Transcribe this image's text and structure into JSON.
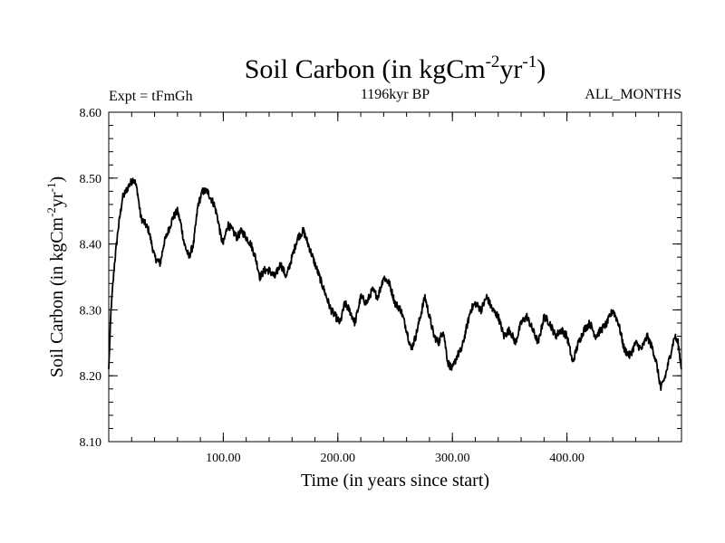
{
  "chart_data": {
    "type": "line",
    "title": {
      "main": "Soil Carbon (in kgCm",
      "sup1": "-2",
      "mid": "yr",
      "sup2": "-1",
      "end": ")"
    },
    "subtitle_left": "Expt = tFmGh",
    "subtitle_center": "1196kyr BP",
    "subtitle_right": "ALL_MONTHS",
    "xlabel": "Time (in years since start)",
    "ylabel": {
      "main": "Soil Carbon (in kgCm",
      "sup1": "-2",
      "mid": "yr",
      "sup2": "-1",
      "end": ")"
    },
    "xlim": [
      0,
      500
    ],
    "ylim": [
      8.1,
      8.6
    ],
    "x_ticks": [
      100,
      200,
      300,
      400
    ],
    "x_tick_labels": [
      "100.00",
      "200.00",
      "300.00",
      "400.00"
    ],
    "y_ticks": [
      8.1,
      8.2,
      8.3,
      8.4,
      8.5,
      8.6
    ],
    "y_tick_labels": [
      "8.10",
      "8.20",
      "8.30",
      "8.40",
      "8.50",
      "8.60"
    ],
    "grid": false,
    "line_color": "#000000",
    "series": [
      {
        "name": "Soil Carbon",
        "x": [
          0,
          2,
          5,
          8,
          12,
          15,
          18,
          22,
          25,
          28,
          32,
          35,
          40,
          45,
          48,
          52,
          56,
          60,
          63,
          66,
          70,
          74,
          78,
          82,
          86,
          89,
          92,
          95,
          98,
          100,
          104,
          108,
          112,
          116,
          120,
          124,
          128,
          132,
          136,
          140,
          145,
          150,
          155,
          160,
          165,
          170,
          174,
          178,
          182,
          186,
          190,
          194,
          198,
          202,
          206,
          210,
          215,
          220,
          225,
          230,
          235,
          240,
          245,
          250,
          255,
          260,
          264,
          268,
          272,
          276,
          280,
          284,
          288,
          292,
          296,
          300,
          304,
          308,
          312,
          316,
          320,
          325,
          330,
          335,
          340,
          345,
          350,
          355,
          360,
          365,
          370,
          375,
          380,
          385,
          390,
          395,
          400,
          405,
          410,
          415,
          420,
          425,
          430,
          435,
          440,
          445,
          450,
          455,
          460,
          465,
          470,
          475,
          478,
          482,
          486,
          490,
          494,
          497,
          500
        ],
        "y": [
          8.21,
          8.3,
          8.37,
          8.42,
          8.47,
          8.48,
          8.49,
          8.5,
          8.48,
          8.44,
          8.43,
          8.42,
          8.38,
          8.37,
          8.4,
          8.42,
          8.44,
          8.45,
          8.43,
          8.4,
          8.38,
          8.4,
          8.46,
          8.48,
          8.48,
          8.47,
          8.46,
          8.44,
          8.41,
          8.4,
          8.43,
          8.42,
          8.41,
          8.42,
          8.41,
          8.4,
          8.38,
          8.35,
          8.36,
          8.36,
          8.35,
          8.37,
          8.35,
          8.38,
          8.41,
          8.42,
          8.4,
          8.38,
          8.36,
          8.34,
          8.32,
          8.3,
          8.29,
          8.28,
          8.31,
          8.3,
          8.28,
          8.32,
          8.31,
          8.33,
          8.32,
          8.35,
          8.34,
          8.31,
          8.3,
          8.27,
          8.24,
          8.26,
          8.29,
          8.32,
          8.29,
          8.26,
          8.25,
          8.27,
          8.22,
          8.21,
          8.23,
          8.24,
          8.27,
          8.3,
          8.31,
          8.3,
          8.32,
          8.3,
          8.29,
          8.26,
          8.27,
          8.25,
          8.28,
          8.29,
          8.27,
          8.25,
          8.29,
          8.28,
          8.26,
          8.27,
          8.26,
          8.22,
          8.25,
          8.27,
          8.28,
          8.26,
          8.27,
          8.28,
          8.3,
          8.28,
          8.24,
          8.23,
          8.25,
          8.24,
          8.26,
          8.24,
          8.22,
          8.18,
          8.2,
          8.23,
          8.26,
          8.25,
          8.21
        ]
      }
    ]
  }
}
